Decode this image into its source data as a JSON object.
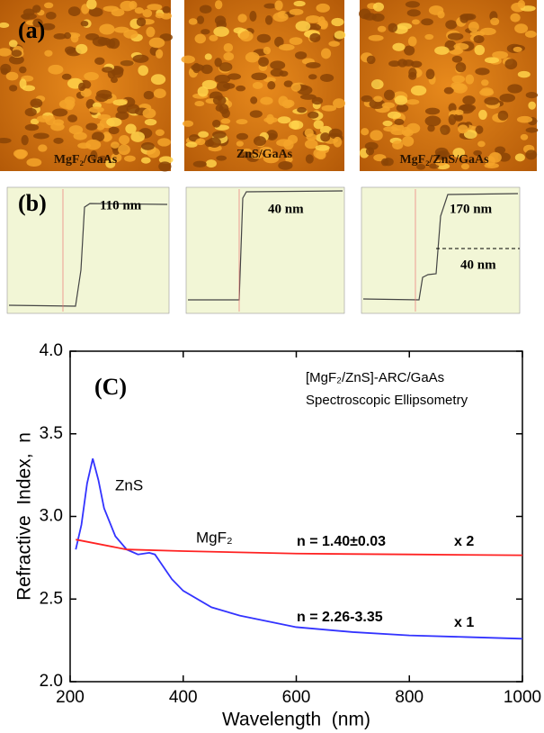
{
  "panel_a": {
    "label": "(a)",
    "captions": [
      "MgF₂/GaAs",
      "ZnS/GaAs",
      "MgF₂/ZnS/GaAs"
    ]
  },
  "panel_b": {
    "label": "(b)",
    "step_heights": [
      "110 nm",
      "40 nm",
      "170 nm",
      "40 nm"
    ]
  },
  "chart_data": {
    "type": "line",
    "panel_label": "(C)",
    "annotations": [
      "[MgF₂/ZnS]-ARC/GaAs",
      "Spectroscopic Ellipsometry",
      "n = 1.40±0.03",
      "x 2",
      "n = 2.26-3.35",
      "x 1"
    ],
    "x_label": "Wavelength  (nm)",
    "y_label": "Refractive  Index,  n",
    "xlim": [
      200,
      1000
    ],
    "xticks": [
      200,
      400,
      600,
      800,
      1000
    ],
    "ylim": [
      2.0,
      4.0
    ],
    "yticks": [
      {
        "value": 2.0,
        "label": "2.0"
      },
      2.5,
      {
        "value": 3.0,
        "label": "3.0"
      },
      3.5,
      {
        "value": 4.0,
        "label": "4.0"
      }
    ],
    "series": [
      {
        "name": "ZnS",
        "color": "#3333ff",
        "x": [
          210,
          220,
          230,
          240,
          250,
          260,
          280,
          300,
          320,
          340,
          350,
          360,
          380,
          400,
          450,
          500,
          600,
          700,
          800,
          900,
          1000
        ],
        "values": [
          2.8,
          2.95,
          3.2,
          3.35,
          3.22,
          3.05,
          2.88,
          2.8,
          2.77,
          2.78,
          2.77,
          2.72,
          2.62,
          2.55,
          2.45,
          2.4,
          2.33,
          2.3,
          2.28,
          2.27,
          2.26
        ]
      },
      {
        "name": "MgF₂",
        "color": "#ff2222",
        "x": [
          210,
          300,
          400,
          600,
          800,
          1000
        ],
        "values": [
          2.86,
          2.8,
          2.79,
          2.775,
          2.77,
          2.765
        ]
      }
    ]
  }
}
